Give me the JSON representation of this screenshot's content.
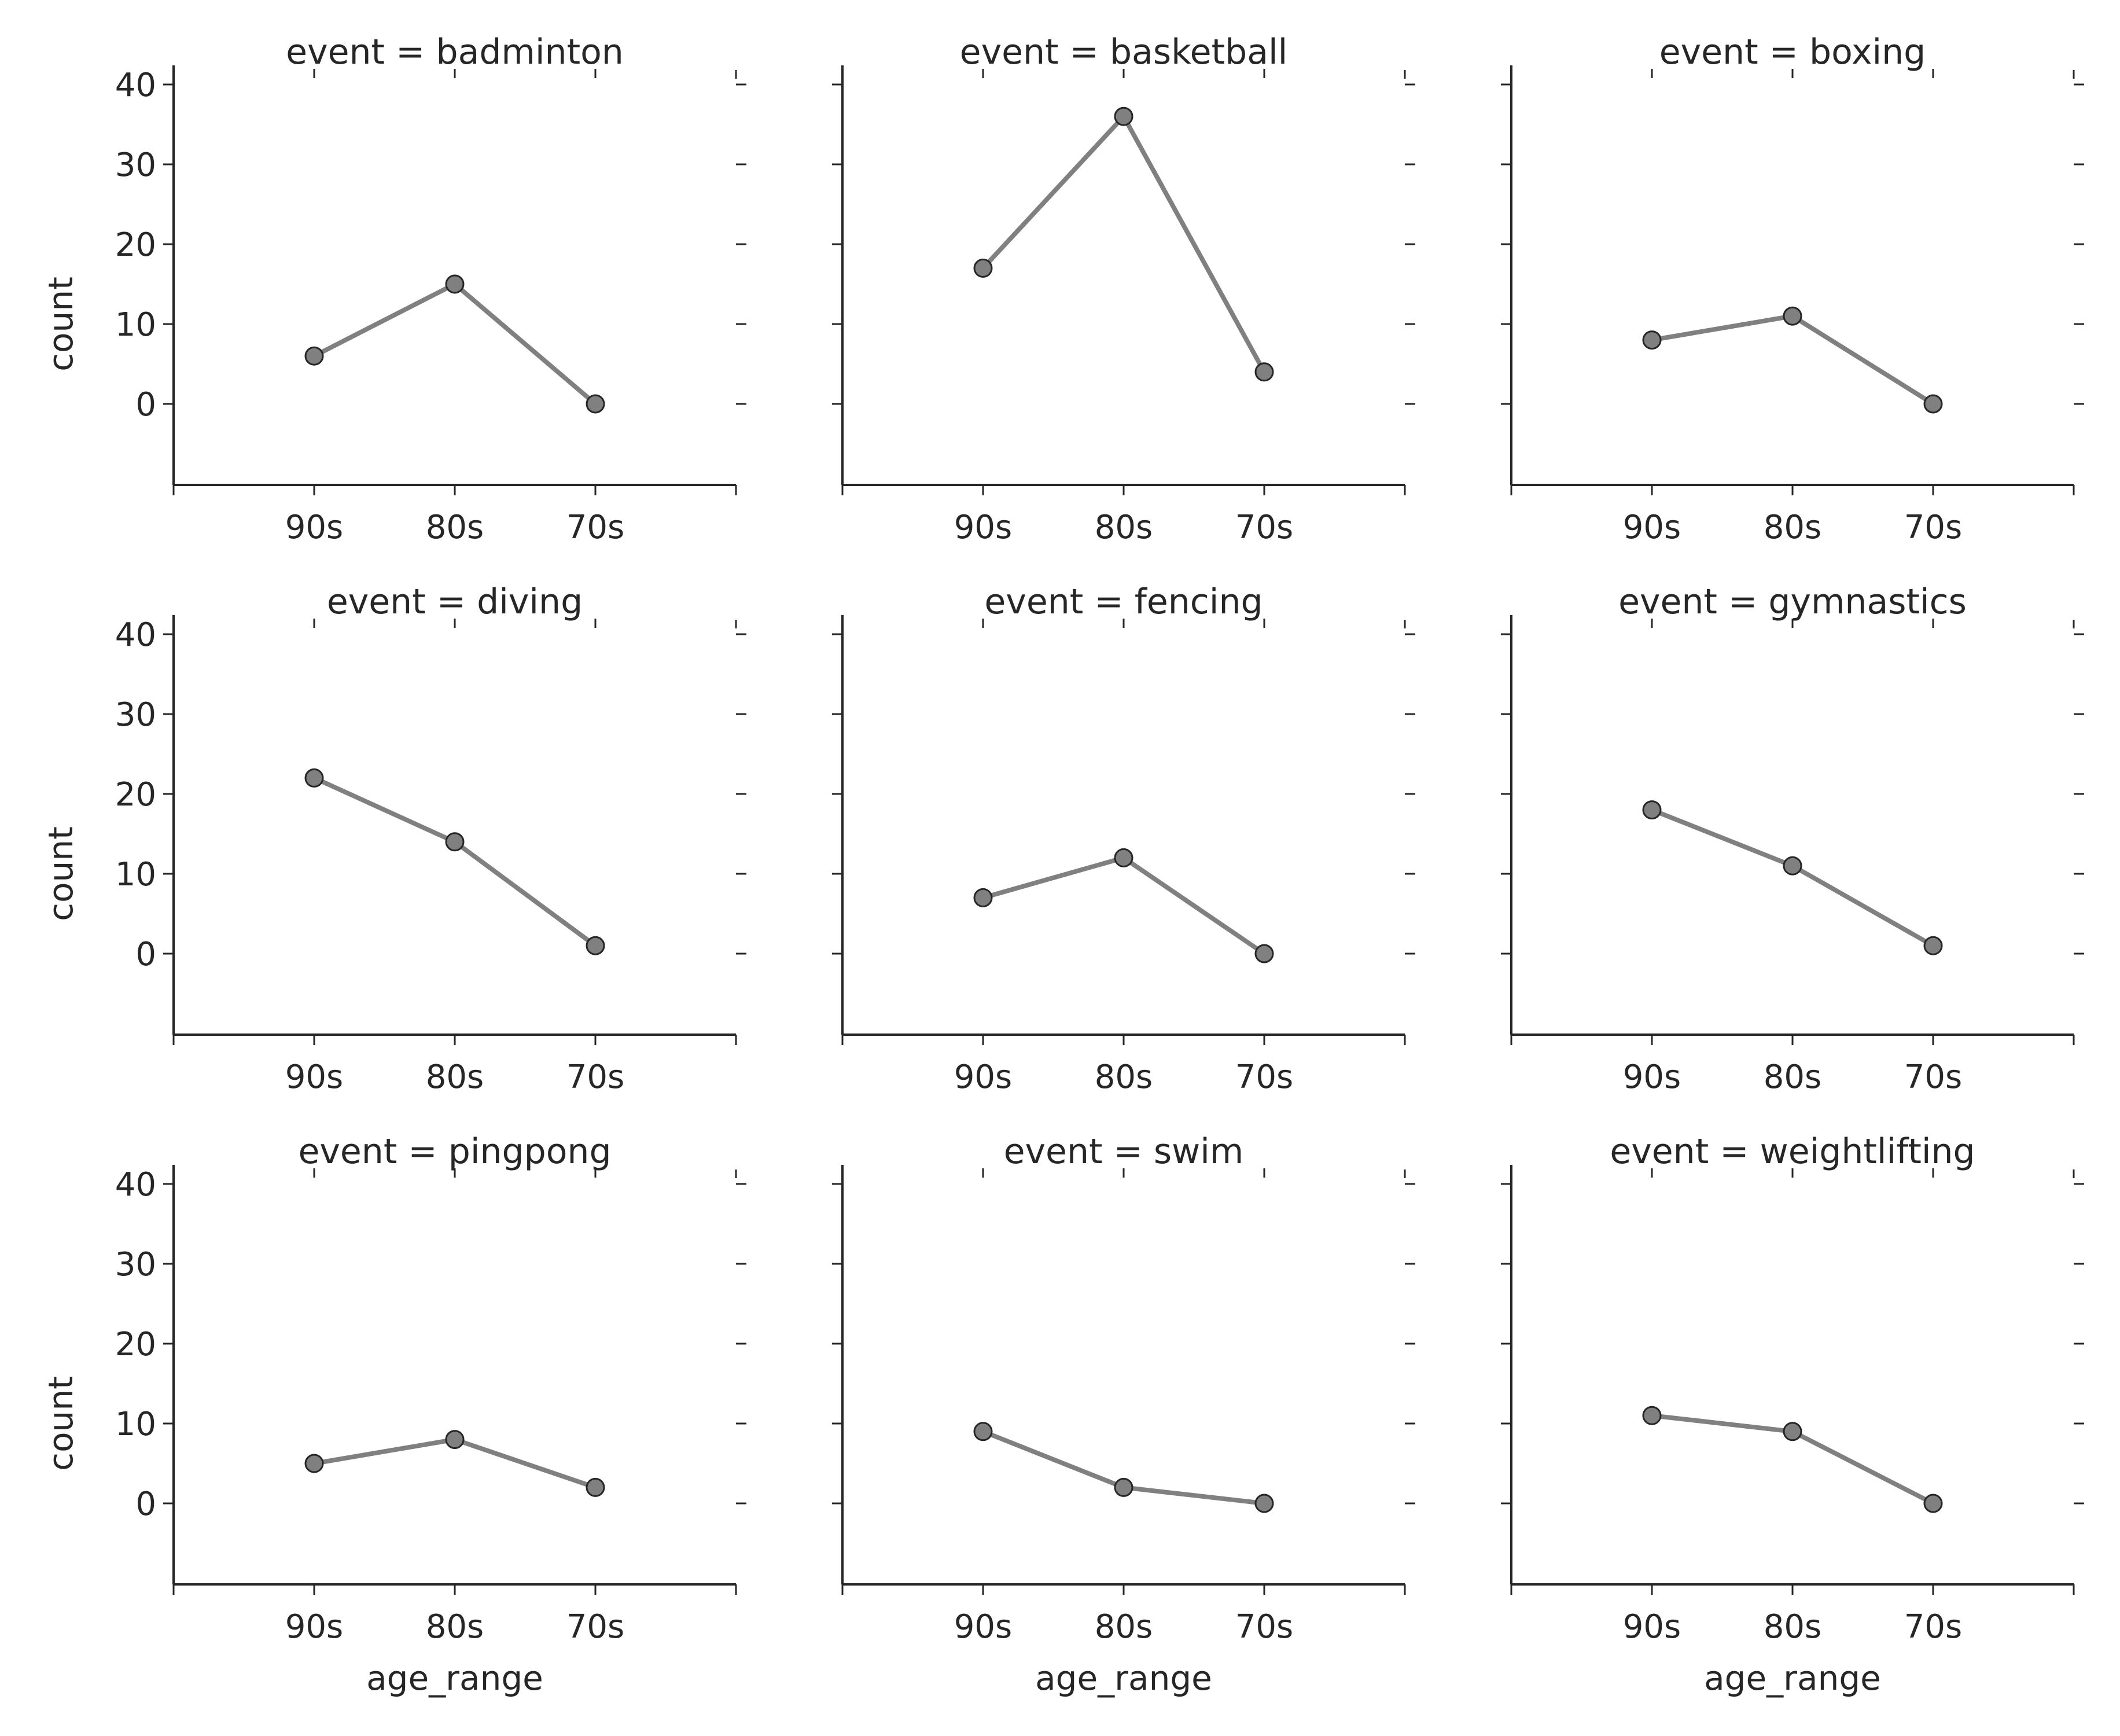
{
  "chart_data": {
    "type": "line",
    "layout": "facet-grid-3x3",
    "categories": [
      "90s",
      "80s",
      "70s"
    ],
    "xlabel": "age_range",
    "ylabel": "count",
    "ylim": [
      -10,
      40
    ],
    "yticks": [
      0,
      10,
      20,
      30,
      40
    ],
    "grid": false,
    "colors": {
      "line": "#808080",
      "marker_fill": "#808080",
      "marker_edge": "#262626",
      "axis": "#262626"
    },
    "panels": [
      {
        "title": "event = badminton",
        "values": [
          6,
          15,
          0
        ]
      },
      {
        "title": "event = basketball",
        "values": [
          17,
          36,
          4
        ]
      },
      {
        "title": "event = boxing",
        "values": [
          8,
          11,
          0
        ]
      },
      {
        "title": "event = diving",
        "values": [
          22,
          14,
          1
        ]
      },
      {
        "title": "event = fencing",
        "values": [
          7,
          12,
          0
        ]
      },
      {
        "title": "event = gymnastics",
        "values": [
          18,
          11,
          1
        ]
      },
      {
        "title": "event = pingpong",
        "values": [
          5,
          8,
          2
        ]
      },
      {
        "title": "event = swim",
        "values": [
          9,
          2,
          0
        ]
      },
      {
        "title": "event = weightlifting",
        "values": [
          11,
          9,
          0
        ]
      }
    ]
  }
}
